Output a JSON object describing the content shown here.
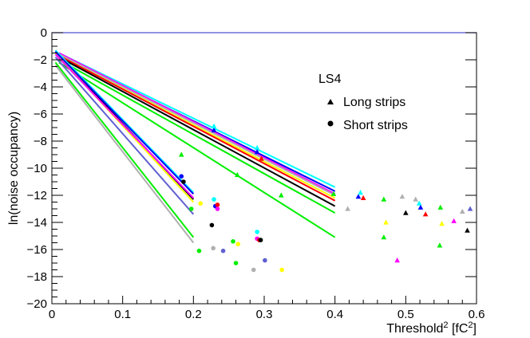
{
  "chart_data": {
    "type": "scatter",
    "title": "",
    "xlabel": "Threshold",
    "xlabel_sup": "2",
    "xlabel_units": " [fC",
    "xlabel_units_sup": "2",
    "xlabel_units_close": "]",
    "ylabel": "ln(noise occupancy)",
    "xlim": [
      0,
      0.6
    ],
    "ylim": [
      -20,
      0
    ],
    "x_ticks": [
      {
        "value": 0,
        "label": "0"
      },
      {
        "value": 0.1,
        "label": "0.1"
      },
      {
        "value": 0.2,
        "label": "0.2"
      },
      {
        "value": 0.3,
        "label": "0.3"
      },
      {
        "value": 0.4,
        "label": "0.4"
      },
      {
        "value": 0.5,
        "label": "0.5"
      },
      {
        "value": 0.6,
        "label": "0.6"
      }
    ],
    "y_ticks": [
      {
        "value": 0,
        "label": "0"
      },
      {
        "value": -2,
        "label": "−2"
      },
      {
        "value": -4,
        "label": "−4"
      },
      {
        "value": -6,
        "label": "−6"
      },
      {
        "value": -8,
        "label": "−8"
      },
      {
        "value": -10,
        "label": "−10"
      },
      {
        "value": -12,
        "label": "−12"
      },
      {
        "value": -14,
        "label": "−14"
      },
      {
        "value": -16,
        "label": "−16"
      },
      {
        "value": -18,
        "label": "−18"
      },
      {
        "value": -20,
        "label": "−20"
      }
    ],
    "legend": {
      "title": "LS4",
      "position": "top-right",
      "entries": [
        {
          "label": "Long strips",
          "marker": "triangle"
        },
        {
          "label": "Short strips",
          "marker": "circle"
        }
      ]
    },
    "long_strip_fits": [
      {
        "color": "#00ffff",
        "x1": 0.01,
        "y1": -1.5,
        "x2": 0.4,
        "y2": -11.4
      },
      {
        "color": "#0000ff",
        "x1": 0.01,
        "y1": -1.6,
        "x2": 0.4,
        "y2": -11.7
      },
      {
        "color": "#ff00ff",
        "x1": 0.01,
        "y1": -1.5,
        "x2": 0.4,
        "y2": -11.9
      },
      {
        "color": "#b0b0b0",
        "x1": 0.01,
        "y1": -1.6,
        "x2": 0.4,
        "y2": -12.0
      },
      {
        "color": "#ffff00",
        "x1": 0.01,
        "y1": -1.7,
        "x2": 0.4,
        "y2": -12.2
      },
      {
        "color": "#ff0000",
        "x1": 0.01,
        "y1": -1.7,
        "x2": 0.4,
        "y2": -12.4
      },
      {
        "color": "#000000",
        "x1": 0.01,
        "y1": -1.8,
        "x2": 0.4,
        "y2": -12.8
      },
      {
        "color": "#00ee00",
        "x1": 0.01,
        "y1": -2.0,
        "x2": 0.4,
        "y2": -13.3
      },
      {
        "color": "#00ee00",
        "x1": 0.01,
        "y1": -2.2,
        "x2": 0.4,
        "y2": -15.1
      }
    ],
    "short_strip_fits": [
      {
        "color": "#00ffff",
        "x1": 0.005,
        "y1": -1.3,
        "x2": 0.2,
        "y2": -11.8
      },
      {
        "color": "#000000",
        "x1": 0.005,
        "y1": -1.4,
        "x2": 0.2,
        "y2": -12.3
      },
      {
        "color": "#ffff00",
        "x1": 0.005,
        "y1": -1.5,
        "x2": 0.2,
        "y2": -12.5
      },
      {
        "color": "#ff00ff",
        "x1": 0.005,
        "y1": -1.6,
        "x2": 0.2,
        "y2": -12.2
      },
      {
        "color": "#0000ff",
        "x1": 0.005,
        "y1": -1.4,
        "x2": 0.2,
        "y2": -11.9
      },
      {
        "color": "#6060d0",
        "x1": 0.005,
        "y1": -1.8,
        "x2": 0.2,
        "y2": -13.4
      },
      {
        "color": "#00ee00",
        "x1": 0.005,
        "y1": -2.2,
        "x2": 0.2,
        "y2": -15.1
      },
      {
        "color": "#b0b0b0",
        "x1": 0.005,
        "y1": -2.4,
        "x2": 0.2,
        "y2": -15.5
      }
    ],
    "long_strip_points": [
      {
        "x": 0.229,
        "y": -7.2,
        "color": "#0000ff"
      },
      {
        "x": 0.229,
        "y": -6.9,
        "color": "#00ffff"
      },
      {
        "x": 0.29,
        "y": -8.5,
        "color": "#00ffff"
      },
      {
        "x": 0.29,
        "y": -8.8,
        "color": "#0000ff"
      },
      {
        "x": 0.296,
        "y": -9.3,
        "color": "#ff0000"
      },
      {
        "x": 0.183,
        "y": -9.0,
        "color": "#00ee00"
      },
      {
        "x": 0.262,
        "y": -10.5,
        "color": "#00ee00"
      },
      {
        "x": 0.324,
        "y": -12.0,
        "color": "#00ee00"
      },
      {
        "x": 0.398,
        "y": -11.9,
        "color": "#00ee00"
      },
      {
        "x": 0.418,
        "y": -13.0,
        "color": "#b0b0b0"
      },
      {
        "x": 0.433,
        "y": -12.1,
        "color": "#0000ff"
      },
      {
        "x": 0.436,
        "y": -11.8,
        "color": "#00ffff"
      },
      {
        "x": 0.44,
        "y": -12.2,
        "color": "#ff0000"
      },
      {
        "x": 0.469,
        "y": -12.3,
        "color": "#00ee00"
      },
      {
        "x": 0.469,
        "y": -15.1,
        "color": "#00ee00"
      },
      {
        "x": 0.472,
        "y": -14.0,
        "color": "#ffff00"
      },
      {
        "x": 0.488,
        "y": -16.8,
        "color": "#ff00ff"
      },
      {
        "x": 0.495,
        "y": -12.1,
        "color": "#b0b0b0"
      },
      {
        "x": 0.5,
        "y": -13.3,
        "color": "#000000"
      },
      {
        "x": 0.514,
        "y": -12.3,
        "color": "#b0b0b0"
      },
      {
        "x": 0.519,
        "y": -12.6,
        "color": "#00ffff"
      },
      {
        "x": 0.521,
        "y": -12.9,
        "color": "#0000ff"
      },
      {
        "x": 0.528,
        "y": -13.4,
        "color": "#ff0000"
      },
      {
        "x": 0.548,
        "y": -15.7,
        "color": "#00ee00"
      },
      {
        "x": 0.549,
        "y": -12.9,
        "color": "#00ee00"
      },
      {
        "x": 0.551,
        "y": -14.1,
        "color": "#ffff00"
      },
      {
        "x": 0.568,
        "y": -13.9,
        "color": "#ff00ff"
      },
      {
        "x": 0.58,
        "y": -13.2,
        "color": "#b0b0b0"
      },
      {
        "x": 0.587,
        "y": -14.6,
        "color": "#000000"
      },
      {
        "x": 0.591,
        "y": -13.0,
        "color": "#6060d0"
      }
    ],
    "short_strip_points": [
      {
        "x": 0.183,
        "y": -10.6,
        "color": "#0000ff"
      },
      {
        "x": 0.186,
        "y": -11.0,
        "color": "#000000"
      },
      {
        "x": 0.197,
        "y": -13.0,
        "color": "#00ee00"
      },
      {
        "x": 0.21,
        "y": -12.6,
        "color": "#ffff00"
      },
      {
        "x": 0.208,
        "y": -16.1,
        "color": "#00ee00"
      },
      {
        "x": 0.226,
        "y": -14.2,
        "color": "#000000"
      },
      {
        "x": 0.228,
        "y": -15.9,
        "color": "#b0b0b0"
      },
      {
        "x": 0.229,
        "y": -12.3,
        "color": "#00ffff"
      },
      {
        "x": 0.231,
        "y": -12.8,
        "color": "#0000ff"
      },
      {
        "x": 0.234,
        "y": -12.7,
        "color": "#ff0000"
      },
      {
        "x": 0.234,
        "y": -13.0,
        "color": "#ff00ff"
      },
      {
        "x": 0.242,
        "y": -16.1,
        "color": "#6060d0"
      },
      {
        "x": 0.256,
        "y": -15.4,
        "color": "#00ee00"
      },
      {
        "x": 0.26,
        "y": -17.0,
        "color": "#00ee00"
      },
      {
        "x": 0.263,
        "y": -15.6,
        "color": "#ffff00"
      },
      {
        "x": 0.285,
        "y": -17.5,
        "color": "#b0b0b0"
      },
      {
        "x": 0.29,
        "y": -14.7,
        "color": "#00ffff"
      },
      {
        "x": 0.29,
        "y": -15.2,
        "color": "#ff00ff"
      },
      {
        "x": 0.293,
        "y": -15.3,
        "color": "#ff0000"
      },
      {
        "x": 0.295,
        "y": -15.3,
        "color": "#000000"
      },
      {
        "x": 0.301,
        "y": -16.8,
        "color": "#6060d0"
      },
      {
        "x": 0.325,
        "y": -17.5,
        "color": "#ffff00"
      }
    ]
  }
}
